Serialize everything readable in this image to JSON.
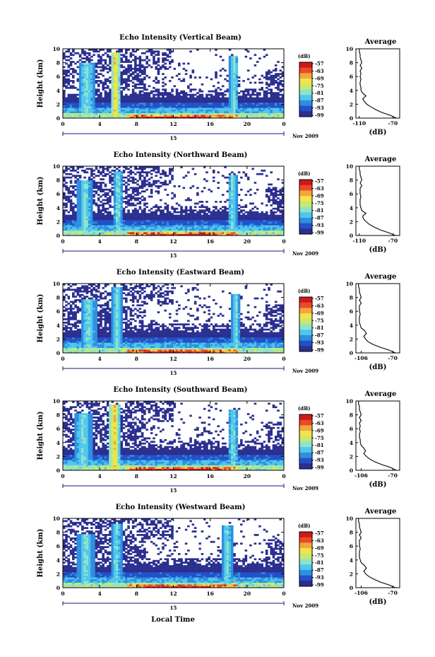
{
  "chart_data": {
    "type": "heatmap",
    "colors": {
      "scale": [
        "#2b2f8f",
        "#2450c8",
        "#2f8fe0",
        "#4fc7ee",
        "#8fe3c9",
        "#c8e870",
        "#f2e44a",
        "#f5a63a",
        "#ea4a2a",
        "#d01818"
      ],
      "line": "#000000"
    },
    "colorbar": {
      "unit_label": "(dB)",
      "ticks": [
        "-57",
        "-63",
        "-69",
        "-75",
        "-81",
        "-87",
        "-93",
        "-99"
      ]
    },
    "xlabel_bottom": "Local Time",
    "panels": [
      {
        "title": "Echo Intensity (Vertical Beam)",
        "ylabel": "Height (km)",
        "x_ticks": [
          "0",
          "4",
          "8",
          "12",
          "16",
          "20",
          "0"
        ],
        "y_ticks": [
          "0",
          "2",
          "4",
          "6",
          "8",
          "10"
        ],
        "date_tick": "15",
        "date_label": "Nov 2009",
        "xlim": [
          0,
          24
        ],
        "ylim": [
          0,
          10
        ],
        "plumes": [
          {
            "t": 5.7,
            "w": 0.5,
            "top": 9.6,
            "strong": true
          },
          {
            "t": 2.6,
            "w": 0.9,
            "top": 8.0,
            "strong": false
          },
          {
            "t": 18.6,
            "w": 0.5,
            "top": 9.0,
            "strong": false
          }
        ],
        "profile": {
          "title": "Average",
          "xlabel": "(dB)",
          "x_ticks": [
            "-110",
            "-70"
          ],
          "xlim": [
            -114,
            -62
          ],
          "heights": [
            0.0,
            0.4,
            0.8,
            1.2,
            1.6,
            2.0,
            2.4,
            2.8,
            3.2,
            3.6,
            4.0,
            4.4,
            4.8,
            5.2,
            5.6,
            6.0,
            6.4,
            6.8,
            7.2,
            7.6,
            8.0,
            8.4,
            8.8,
            9.2,
            9.6,
            10.0
          ],
          "values": [
            -66,
            -73,
            -83,
            -90,
            -96,
            -101,
            -104,
            -106,
            -102,
            -106,
            -108,
            -108,
            -109,
            -109,
            -108,
            -109,
            -108,
            -109,
            -107,
            -109,
            -107,
            -108,
            -109,
            -109,
            -110,
            -110
          ]
        }
      },
      {
        "title": "Echo Intensity (Northward Beam)",
        "ylabel": "Height (km)",
        "x_ticks": [
          "0",
          "4",
          "8",
          "12",
          "16",
          "20",
          "0"
        ],
        "y_ticks": [
          "0",
          "2",
          "4",
          "6",
          "8",
          "10"
        ],
        "date_tick": "15",
        "date_label": "Nov 2009",
        "xlim": [
          0,
          24
        ],
        "ylim": [
          0,
          10
        ],
        "plumes": [
          {
            "t": 6.0,
            "w": 0.6,
            "top": 9.2,
            "strong": false
          },
          {
            "t": 2.4,
            "w": 0.8,
            "top": 8.0,
            "strong": false
          },
          {
            "t": 18.4,
            "w": 0.5,
            "top": 8.8,
            "strong": false
          }
        ],
        "profile": {
          "title": "Average",
          "xlabel": "(dB)",
          "x_ticks": [
            "-110",
            "-70"
          ],
          "xlim": [
            -114,
            -62
          ],
          "heights": [
            0.0,
            0.4,
            0.8,
            1.2,
            1.6,
            2.0,
            2.4,
            2.8,
            3.2,
            3.6,
            4.0,
            4.4,
            4.8,
            5.2,
            5.6,
            6.0,
            6.4,
            6.8,
            7.2,
            7.6,
            8.0,
            8.4,
            8.8,
            9.2,
            9.6,
            10.0
          ],
          "values": [
            -67,
            -75,
            -85,
            -92,
            -98,
            -102,
            -105,
            -106,
            -102,
            -107,
            -108,
            -109,
            -109,
            -109,
            -108,
            -109,
            -109,
            -109,
            -107,
            -109,
            -107,
            -108,
            -109,
            -109,
            -110,
            -110
          ]
        }
      },
      {
        "title": "Echo Intensity (Eastward Beam)",
        "ylabel": "Height (km)",
        "x_ticks": [
          "0",
          "4",
          "8",
          "12",
          "16",
          "20",
          "0"
        ],
        "y_ticks": [
          "0",
          "2",
          "4",
          "6",
          "8",
          "10"
        ],
        "date_tick": "15",
        "date_label": "Nov 2009",
        "xlim": [
          0,
          24
        ],
        "ylim": [
          0,
          10
        ],
        "plumes": [
          {
            "t": 5.9,
            "w": 0.6,
            "top": 9.4,
            "strong": false
          },
          {
            "t": 2.8,
            "w": 0.9,
            "top": 7.8,
            "strong": false
          },
          {
            "t": 18.8,
            "w": 0.5,
            "top": 8.6,
            "strong": false
          }
        ],
        "profile": {
          "title": "Average",
          "xlabel": "(dB)",
          "x_ticks": [
            "-106",
            "-70"
          ],
          "xlim": [
            -112,
            -62
          ],
          "heights": [
            0.0,
            0.4,
            0.8,
            1.2,
            1.6,
            2.0,
            2.4,
            2.8,
            3.2,
            3.6,
            4.0,
            4.4,
            4.8,
            5.2,
            5.6,
            6.0,
            6.4,
            6.8,
            7.2,
            7.6,
            8.0,
            8.4,
            8.8,
            9.2,
            9.6,
            10.0
          ],
          "values": [
            -67,
            -74,
            -84,
            -92,
            -98,
            -101,
            -103,
            -100,
            -102,
            -106,
            -107,
            -108,
            -108,
            -108,
            -107,
            -108,
            -108,
            -108,
            -106,
            -108,
            -106,
            -107,
            -108,
            -108,
            -109,
            -109
          ]
        }
      },
      {
        "title": "Echo Intensity (Southward Beam)",
        "ylabel": "Height (km)",
        "x_ticks": [
          "0",
          "4",
          "8",
          "12",
          "16",
          "20",
          "0"
        ],
        "y_ticks": [
          "0",
          "2",
          "4",
          "6",
          "8",
          "10"
        ],
        "date_tick": "15",
        "date_label": "Nov 2009",
        "xlim": [
          0,
          24
        ],
        "ylim": [
          0,
          10
        ],
        "plumes": [
          {
            "t": 5.6,
            "w": 0.6,
            "top": 9.6,
            "strong": true
          },
          {
            "t": 2.2,
            "w": 1.0,
            "top": 8.2,
            "strong": false
          },
          {
            "t": 18.5,
            "w": 0.6,
            "top": 8.8,
            "strong": false
          }
        ],
        "profile": {
          "title": "Average",
          "xlabel": "(dB)",
          "x_ticks": [
            "-106",
            "-70"
          ],
          "xlim": [
            -112,
            -62
          ],
          "heights": [
            0.0,
            0.4,
            0.8,
            1.2,
            1.6,
            2.0,
            2.4,
            2.8,
            3.2,
            3.6,
            4.0,
            4.4,
            4.8,
            5.2,
            5.6,
            6.0,
            6.4,
            6.8,
            7.2,
            7.6,
            8.0,
            8.4,
            8.8,
            9.2,
            9.6,
            10.0
          ],
          "values": [
            -66,
            -72,
            -82,
            -90,
            -96,
            -100,
            -103,
            -101,
            -103,
            -106,
            -107,
            -107,
            -108,
            -108,
            -107,
            -108,
            -107,
            -108,
            -106,
            -108,
            -106,
            -107,
            -108,
            -108,
            -109,
            -109
          ]
        }
      },
      {
        "title": "Echo Intensity (Westward Beam)",
        "ylabel": "Height (km)",
        "x_ticks": [
          "0",
          "4",
          "8",
          "12",
          "16",
          "20",
          "0"
        ],
        "y_ticks": [
          "0",
          "2",
          "4",
          "6",
          "8",
          "10"
        ],
        "date_tick": "15",
        "date_label": "Nov 2009",
        "xlim": [
          0,
          24
        ],
        "ylim": [
          0,
          10
        ],
        "plumes": [
          {
            "t": 5.8,
            "w": 0.6,
            "top": 9.2,
            "strong": false
          },
          {
            "t": 2.5,
            "w": 0.9,
            "top": 7.8,
            "strong": false
          },
          {
            "t": 17.8,
            "w": 0.6,
            "top": 9.0,
            "strong": false
          }
        ],
        "profile": {
          "title": "Average",
          "xlabel": "(dB)",
          "x_ticks": [
            "-106",
            "-70"
          ],
          "xlim": [
            -112,
            -62
          ],
          "heights": [
            0.0,
            0.4,
            0.8,
            1.2,
            1.6,
            2.0,
            2.4,
            2.8,
            3.2,
            3.6,
            4.0,
            4.4,
            4.8,
            5.2,
            5.6,
            6.0,
            6.4,
            6.8,
            7.2,
            7.6,
            8.0,
            8.4,
            8.8,
            9.2,
            9.6,
            10.0
          ],
          "values": [
            -67,
            -74,
            -84,
            -91,
            -97,
            -101,
            -103,
            -100,
            -102,
            -106,
            -107,
            -108,
            -108,
            -108,
            -107,
            -108,
            -108,
            -108,
            -106,
            -108,
            -106,
            -107,
            -108,
            -108,
            -109,
            -109
          ]
        }
      }
    ]
  }
}
